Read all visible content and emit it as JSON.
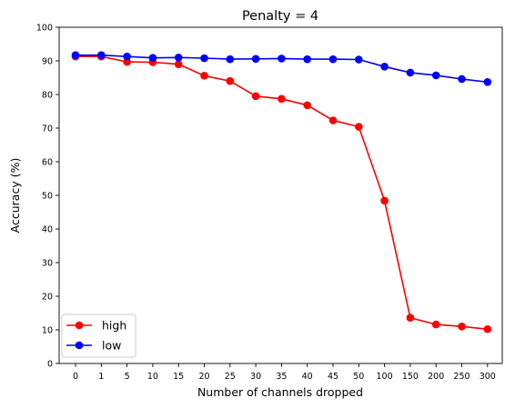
{
  "chart_data": {
    "type": "line",
    "title": "Penalty = 4",
    "xlabel": "Number of channels dropped",
    "ylabel": "Accuracy (%)",
    "categories": [
      "0",
      "1",
      "5",
      "10",
      "15",
      "20",
      "25",
      "30",
      "35",
      "40",
      "45",
      "50",
      "100",
      "150",
      "200",
      "250",
      "300"
    ],
    "ylim": [
      0,
      100
    ],
    "yticks": [
      "0",
      "10",
      "20",
      "30",
      "40",
      "50",
      "60",
      "70",
      "80",
      "90",
      "100"
    ],
    "grid": false,
    "legend_position": "lower-left",
    "series": [
      {
        "name": "high",
        "color": "#ff0000",
        "marker": "circle",
        "values": [
          91.3,
          91.3,
          89.7,
          89.6,
          89.0,
          85.6,
          84.0,
          79.5,
          78.7,
          76.8,
          72.3,
          70.4,
          48.4,
          13.6,
          11.6,
          11.0,
          10.2
        ]
      },
      {
        "name": "low",
        "color": "#0000ff",
        "marker": "circle",
        "values": [
          91.7,
          91.7,
          91.3,
          90.9,
          91.0,
          90.8,
          90.5,
          90.6,
          90.7,
          90.5,
          90.5,
          90.4,
          88.3,
          86.5,
          85.7,
          84.6,
          83.7
        ]
      }
    ]
  }
}
